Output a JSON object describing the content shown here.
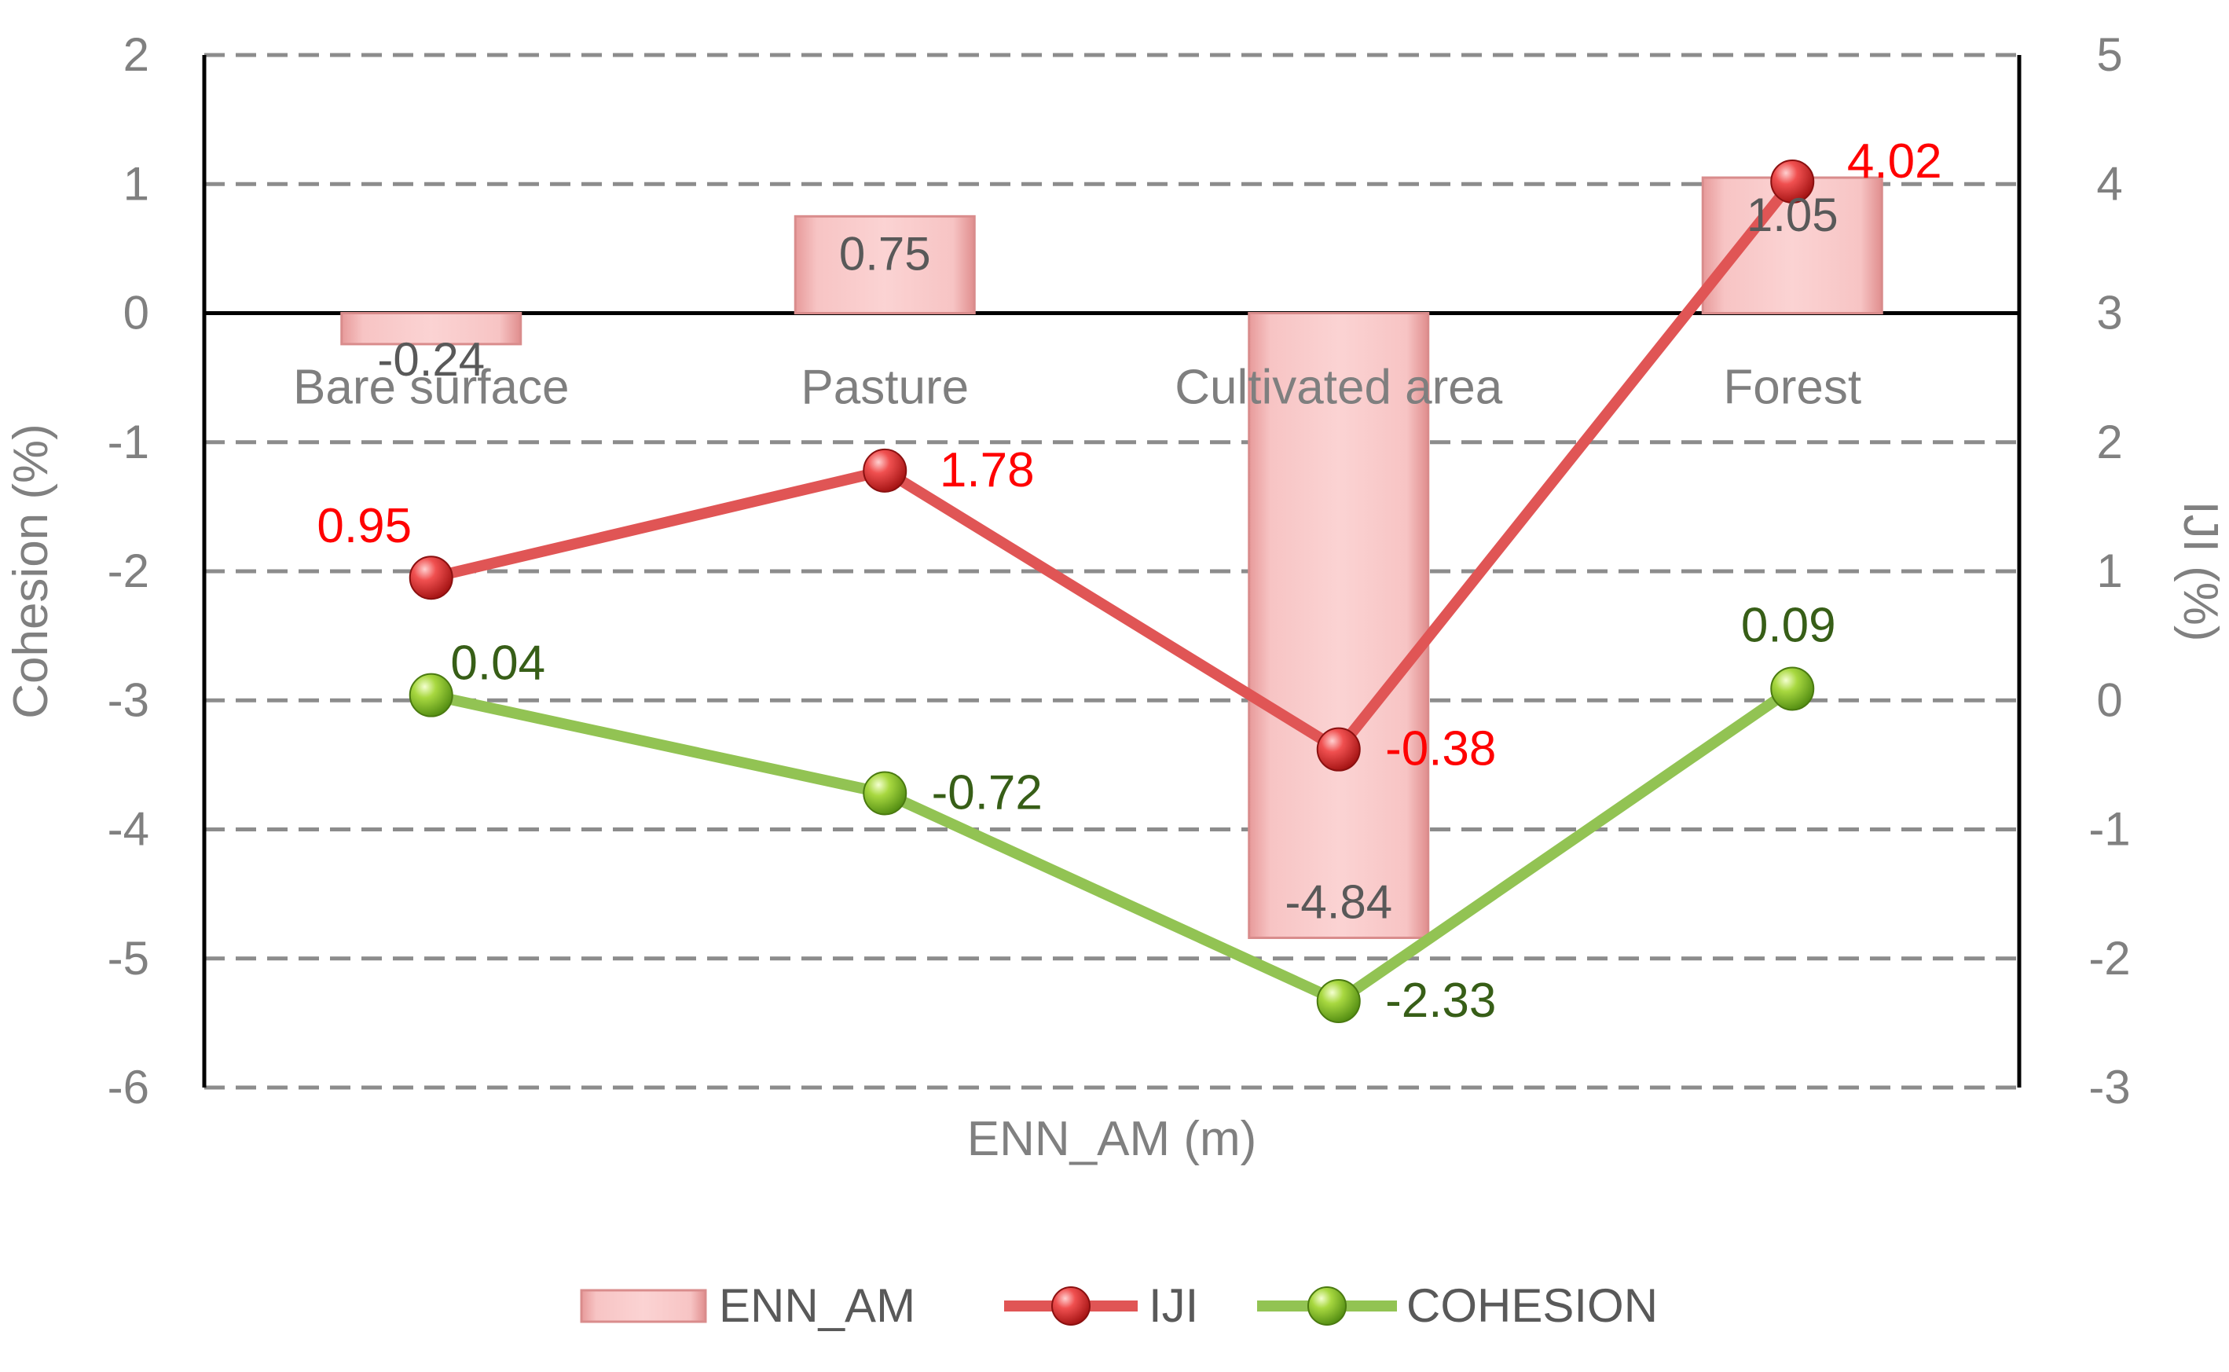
{
  "chart_data": {
    "type": "bar",
    "categories": [
      "Bare surface",
      "Pasture",
      "Cultivated area",
      "Forest"
    ],
    "xlabel": "ENN_AM (m)",
    "ylabel": "Cohesion (%)",
    "y2label": "IJI (%)",
    "ylim": [
      -6,
      2
    ],
    "y2lim": [
      -3,
      5
    ],
    "yticks": [
      "2",
      "1",
      "0",
      "-1",
      "-2",
      "-3",
      "-4",
      "-5",
      "-6"
    ],
    "y2ticks": [
      "5",
      "4",
      "3",
      "2",
      "1",
      "0",
      "-1",
      "-2",
      "-3"
    ],
    "grid": "horizontal dashed",
    "legend_position": "bottom",
    "series": [
      {
        "name": "ENN_AM",
        "type": "bar",
        "axis": "left",
        "values": [
          -0.24,
          0.75,
          -4.84,
          1.05
        ],
        "labels": [
          "-0.24",
          "0.75",
          "-4.84",
          "1.05"
        ],
        "color": "#f4b8b8"
      },
      {
        "name": "IJI",
        "type": "line",
        "axis": "right",
        "values": [
          0.95,
          1.78,
          -0.38,
          4.02
        ],
        "labels": [
          "0.95",
          "1.78",
          "-0.38",
          "4.02"
        ],
        "color": "#e05555",
        "label_color": "#ff0000"
      },
      {
        "name": "COHESION",
        "type": "line",
        "axis": "right",
        "values": [
          0.04,
          -0.72,
          -2.33,
          0.09
        ],
        "labels": [
          "0.04",
          "-0.72",
          "-2.33",
          "0.09"
        ],
        "color": "#92c353",
        "label_color": "#375e17"
      }
    ]
  }
}
